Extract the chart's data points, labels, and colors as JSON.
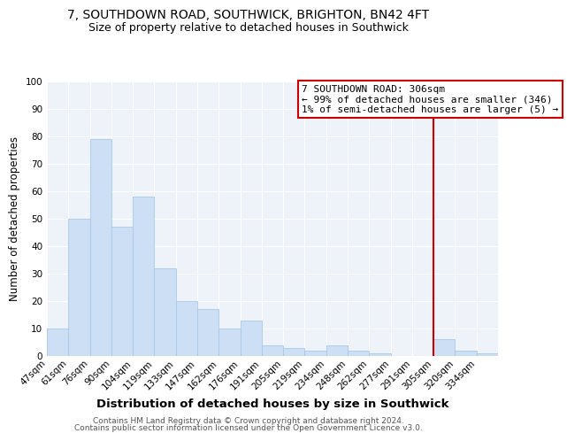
{
  "title": "7, SOUTHDOWN ROAD, SOUTHWICK, BRIGHTON, BN42 4FT",
  "subtitle": "Size of property relative to detached houses in Southwick",
  "xlabel": "Distribution of detached houses by size in Southwick",
  "ylabel": "Number of detached properties",
  "bar_labels": [
    "47sqm",
    "61sqm",
    "76sqm",
    "90sqm",
    "104sqm",
    "119sqm",
    "133sqm",
    "147sqm",
    "162sqm",
    "176sqm",
    "191sqm",
    "205sqm",
    "219sqm",
    "234sqm",
    "248sqm",
    "262sqm",
    "277sqm",
    "291sqm",
    "305sqm",
    "320sqm",
    "334sqm"
  ],
  "bar_values": [
    10,
    50,
    79,
    47,
    58,
    32,
    20,
    17,
    10,
    13,
    4,
    3,
    2,
    4,
    2,
    1,
    0,
    0,
    6,
    2,
    1
  ],
  "bar_color": "#ccdff5",
  "bar_edge_color": "#a8c8e8",
  "plot_bg_color": "#eef3fa",
  "ylim": [
    0,
    100
  ],
  "yticks": [
    0,
    10,
    20,
    30,
    40,
    50,
    60,
    70,
    80,
    90,
    100
  ],
  "vline_index": 18,
  "vline_color": "#cc0000",
  "annotation_title": "7 SOUTHDOWN ROAD: 306sqm",
  "annotation_line1": "← 99% of detached houses are smaller (346)",
  "annotation_line2": "1% of semi-detached houses are larger (5) →",
  "annotation_box_facecolor": "#ffffff",
  "annotation_box_edgecolor": "#cc0000",
  "footer1": "Contains HM Land Registry data © Crown copyright and database right 2024.",
  "footer2": "Contains public sector information licensed under the Open Government Licence v3.0.",
  "title_fontsize": 10,
  "subtitle_fontsize": 9,
  "xlabel_fontsize": 9.5,
  "ylabel_fontsize": 8.5,
  "tick_fontsize": 7.5,
  "annotation_fontsize": 8,
  "footer_fontsize": 6.5
}
